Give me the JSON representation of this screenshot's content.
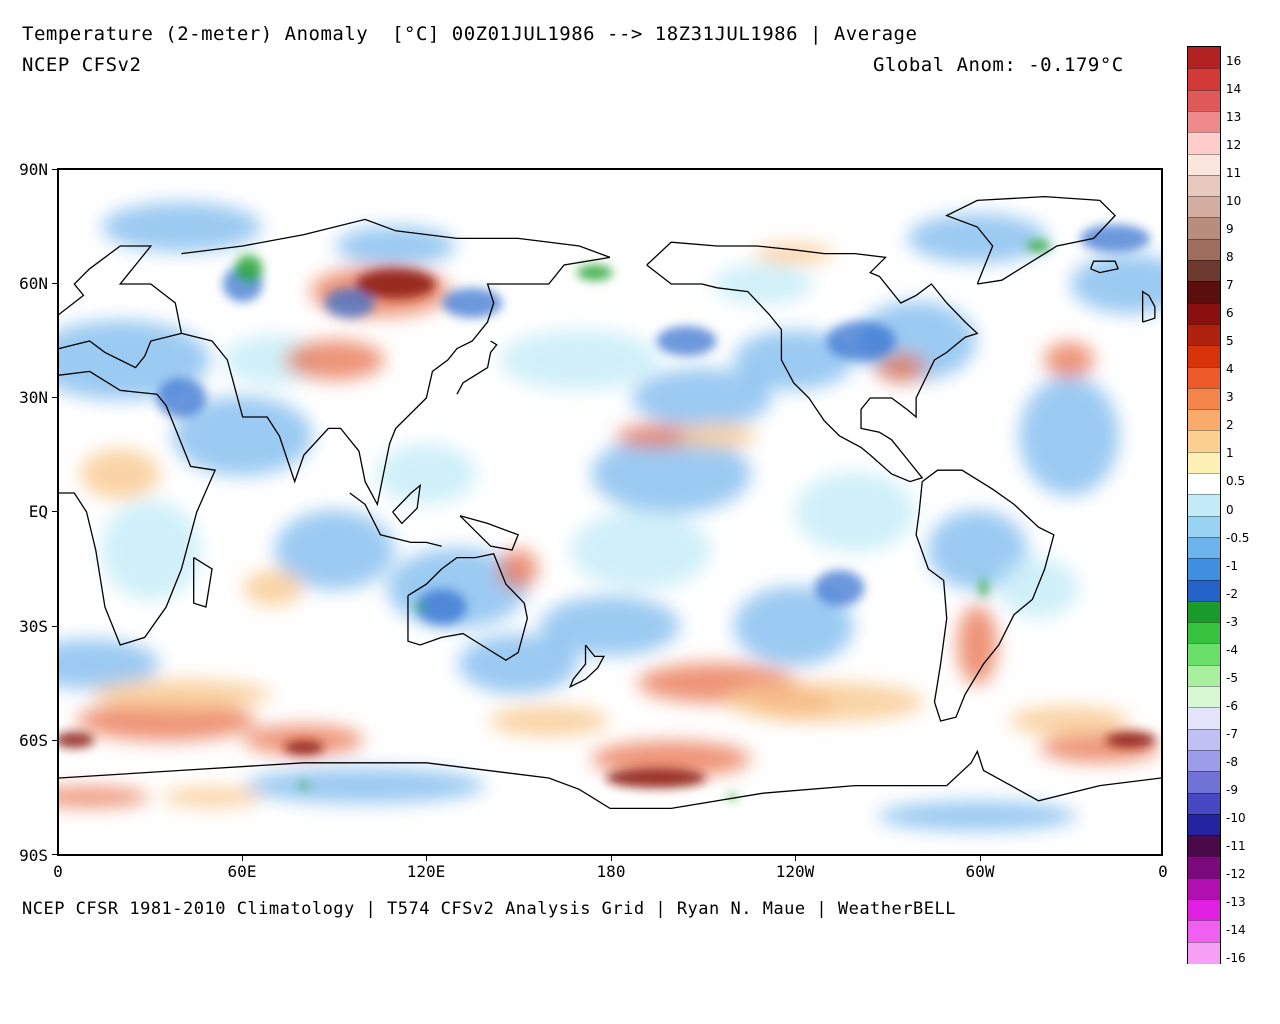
{
  "header": {
    "title": "Temperature (2-meter) Anomaly  [°C] 00Z01JUL1986 --> 18Z31JUL1986 | Average",
    "model": "NCEP CFSv2",
    "global_anom": "Global Anom: -0.179°C"
  },
  "footer": "NCEP CFSR 1981-2010 Climatology | T574 CFSv2 Analysis Grid | Ryan N. Maue | WeatherBELL",
  "axes": {
    "lat_labels": [
      "90N",
      "60N",
      "30N",
      "EQ",
      "30S",
      "60S",
      "90S"
    ],
    "lon_labels": [
      "0",
      "60E",
      "120E",
      "180",
      "120W",
      "60W",
      "0"
    ]
  },
  "colorbar": {
    "labels": [
      "16",
      "14",
      "13",
      "12",
      "11",
      "10",
      "9",
      "8",
      "7",
      "6",
      "5",
      "4",
      "3",
      "2",
      "1",
      "0.5",
      "0",
      "-0.5",
      "-1",
      "-2",
      "-3",
      "-4",
      "-5",
      "-6",
      "-7",
      "-8",
      "-9",
      "-10",
      "-11",
      "-12",
      "-13",
      "-14",
      "-16"
    ],
    "colors": [
      "#b22222",
      "#d23a3a",
      "#e05a5a",
      "#ee8a8a",
      "#ffcccc",
      "#fbe6de",
      "#e8c9bd",
      "#d2ada0",
      "#b98d7e",
      "#9e6d5e",
      "#6e3a30",
      "#5a0e0e",
      "#8a1010",
      "#b0200f",
      "#d8340c",
      "#ee5a2a",
      "#f3844a",
      "#f8ab6a",
      "#fbd090",
      "#fdf0b4",
      "#ffffff",
      "#c4ecf8",
      "#98d4f2",
      "#6cb4ec",
      "#3f8ee0",
      "#2563c8",
      "#1a9a2a",
      "#36c23c",
      "#6ae06a",
      "#a8f0a0",
      "#d8f8d4",
      "#e4e4fc",
      "#c0c0f4",
      "#9c9ce8",
      "#7272d6",
      "#4848c2",
      "#2424a0",
      "#4a0a4a",
      "#7c0a7c",
      "#b010b0",
      "#e020e0",
      "#f060f0",
      "#f8a0f8"
    ],
    "value_range": [
      -16,
      16
    ]
  },
  "map": {
    "projection": "cylindrical-equidistant",
    "lon_range": [
      0,
      360
    ],
    "lat_range": [
      -90,
      90
    ],
    "ocean_base_color": "#ffffff",
    "anomaly_colors": {
      "strong_warm": "#8a1a0a",
      "warm": "#e8704a",
      "mild_warm": "#f9c98e",
      "slight_warm": "#fdf0b4",
      "slight_cool": "#c4ecf8",
      "cool": "#7ab8ee",
      "strong_cool": "#2e6ccf",
      "very_cold": "#2ea83a"
    },
    "coastline_color": "#000000"
  }
}
